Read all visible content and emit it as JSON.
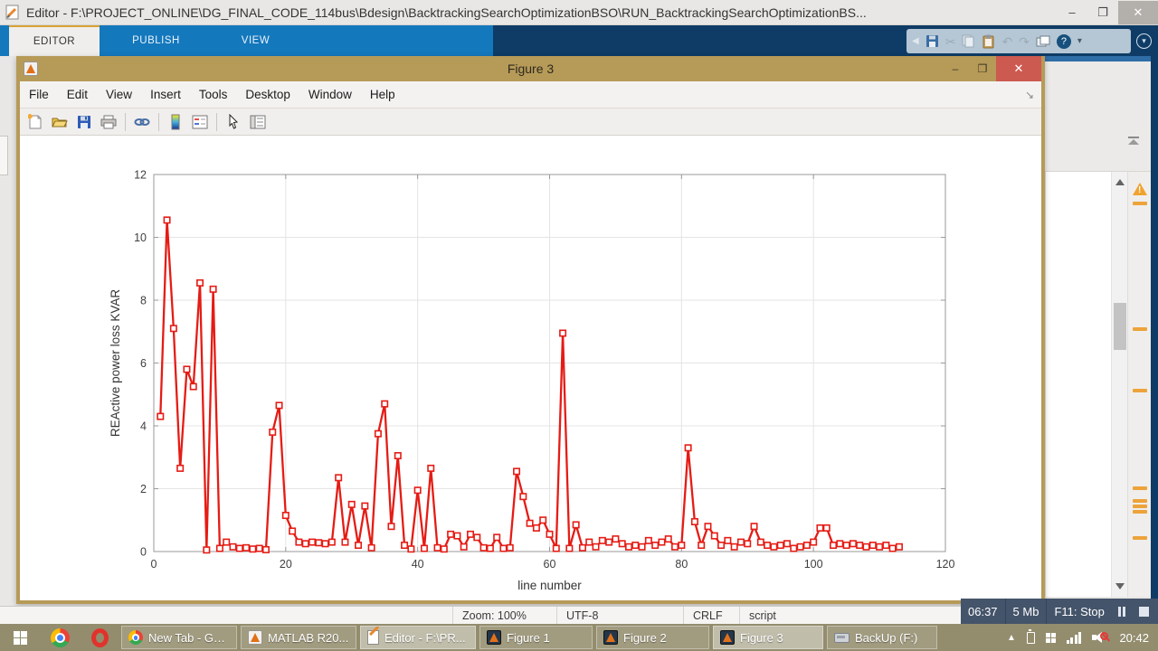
{
  "window": {
    "title": "Editor - F:\\PROJECT_ONLINE\\DG_FINAL_CODE_114bus\\Bdesign\\BacktrackingSearchOptimizationBSO\\RUN_BacktrackingSearchOptimizationBS...",
    "controls": {
      "minimize": "–",
      "maximize": "❐",
      "close": "✕"
    }
  },
  "toolstrip": {
    "tabs": [
      "EDITOR",
      "PUBLISH",
      "VIEW"
    ],
    "active_tab": "EDITOR",
    "accent_blue": "#1478bd",
    "dark_blue": "#0e3c66",
    "qab_icons": [
      "save",
      "cut",
      "copy",
      "paste",
      "undo",
      "redo",
      "windows",
      "help",
      "dropdown"
    ]
  },
  "figure": {
    "title": "Figure 3",
    "controls": {
      "minimize": "–",
      "maximize": "❐",
      "close": "✕"
    },
    "close_color": "#cd5a51",
    "titlebar_color": "#b69a58",
    "menus": [
      "File",
      "Edit",
      "View",
      "Insert",
      "Tools",
      "Desktop",
      "Window",
      "Help"
    ],
    "toolbar_icons": [
      "new-figure",
      "open-file",
      "save-figure",
      "print-figure",
      "link-plot",
      "insert-colorbar",
      "insert-legend",
      "edit-plot",
      "property-inspector"
    ]
  },
  "chart_data": {
    "type": "line",
    "title": "",
    "xlabel": "line number",
    "ylabel": "REActive power loss KVAR",
    "xlim": [
      0,
      120
    ],
    "ylim": [
      0,
      12
    ],
    "xticks": [
      0,
      20,
      40,
      60,
      80,
      100,
      120
    ],
    "yticks": [
      0,
      2,
      4,
      6,
      8,
      10,
      12
    ],
    "grid": true,
    "legend": "none",
    "line_color": "#e51c15",
    "marker": "square",
    "x_start": 1,
    "values": [
      4.3,
      10.55,
      7.1,
      2.65,
      5.8,
      5.25,
      8.55,
      0.05,
      8.35,
      0.1,
      0.3,
      0.15,
      0.1,
      0.12,
      0.08,
      0.1,
      0.06,
      3.8,
      4.65,
      1.15,
      0.65,
      0.3,
      0.25,
      0.3,
      0.28,
      0.25,
      0.3,
      2.35,
      0.3,
      1.5,
      0.2,
      1.45,
      0.12,
      3.75,
      4.7,
      0.8,
      3.05,
      0.2,
      0.08,
      1.95,
      0.1,
      2.65,
      0.12,
      0.08,
      0.55,
      0.5,
      0.15,
      0.55,
      0.45,
      0.12,
      0.1,
      0.45,
      0.1,
      0.12,
      2.55,
      1.75,
      0.9,
      0.75,
      1.0,
      0.55,
      0.1,
      6.95,
      0.1,
      0.85,
      0.12,
      0.3,
      0.15,
      0.35,
      0.3,
      0.4,
      0.25,
      0.15,
      0.2,
      0.15,
      0.35,
      0.2,
      0.3,
      0.4,
      0.15,
      0.2,
      3.3,
      0.95,
      0.2,
      0.8,
      0.5,
      0.2,
      0.35,
      0.15,
      0.3,
      0.25,
      0.8,
      0.3,
      0.2,
      0.15,
      0.2,
      0.25,
      0.1,
      0.15,
      0.2,
      0.3,
      0.75,
      0.75,
      0.2,
      0.25,
      0.2,
      0.25,
      0.2,
      0.15,
      0.2,
      0.15,
      0.2,
      0.1,
      0.15
    ]
  },
  "statusbar": {
    "zoom": "Zoom: 100%",
    "encoding": "UTF-8",
    "eol": "CRLF",
    "file_type": "script"
  },
  "recorder": {
    "elapsed": "06:37",
    "size": "5 Mb",
    "stop_hint": "F11: Stop"
  },
  "taskbar": {
    "clock": "20:42",
    "buttons": [
      {
        "label": "New Tab - Go...",
        "icon": "chrome"
      },
      {
        "label": "MATLAB R20...",
        "icon": "matlab"
      },
      {
        "label": "Editor - F:\\PR...",
        "icon": "editor"
      },
      {
        "label": "Figure 1",
        "icon": "matlab-figure"
      },
      {
        "label": "Figure 2",
        "icon": "matlab-figure"
      },
      {
        "label": "Figure 3",
        "icon": "matlab-figure"
      },
      {
        "label": "BackUp (F:)",
        "icon": "usb-drive"
      }
    ]
  }
}
